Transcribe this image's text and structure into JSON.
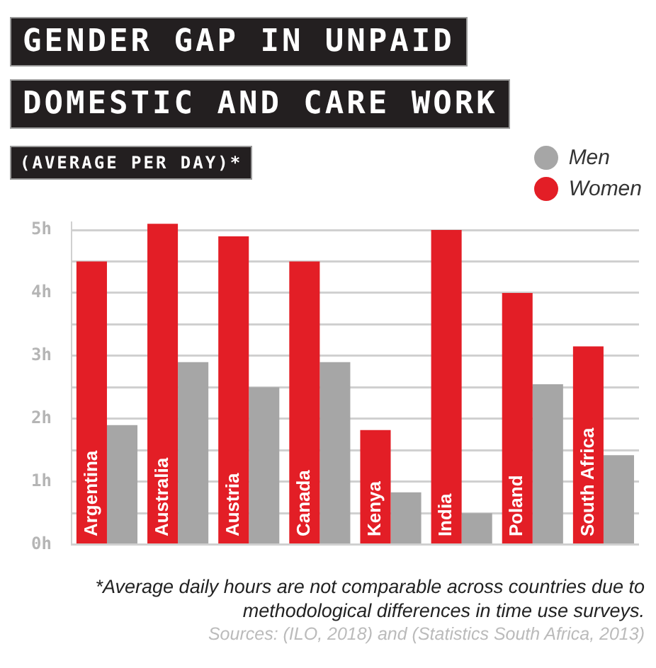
{
  "chart_data": {
    "type": "bar",
    "title": "GENDER GAP IN UNPAID DOMESTIC AND CARE WORK",
    "subtitle": "(AVERAGE PER DAY)*",
    "categories": [
      "Argentina",
      "Australia",
      "Austria",
      "Canada",
      "Kenya",
      "India",
      "Poland",
      "South Africa"
    ],
    "series": [
      {
        "name": "Women",
        "color": "#e31e26",
        "values": [
          4.5,
          5.1,
          4.9,
          4.5,
          1.82,
          5.0,
          4.0,
          3.15
        ]
      },
      {
        "name": "Men",
        "color": "#a6a6a6",
        "values": [
          1.9,
          2.9,
          2.5,
          2.9,
          0.83,
          0.5,
          2.55,
          1.42
        ]
      }
    ],
    "ylim": [
      0,
      5.12
    ],
    "yticks": [
      {
        "value": 0,
        "label": "0h"
      },
      {
        "value": 0.5,
        "label": null
      },
      {
        "value": 1,
        "label": "1h"
      },
      {
        "value": 1.5,
        "label": null
      },
      {
        "value": 2,
        "label": "2h"
      },
      {
        "value": 2.5,
        "label": null
      },
      {
        "value": 3,
        "label": "3h"
      },
      {
        "value": 3.5,
        "label": null
      },
      {
        "value": 4,
        "label": "4h"
      },
      {
        "value": 4.5,
        "label": null
      },
      {
        "value": 5,
        "label": "5h"
      }
    ],
    "grid": "y",
    "legend": "top right",
    "tick_labels": "y",
    "annotations": [
      "*Average daily hours are not comparable across countries due to methodological differences in time use surveys.",
      "Sources: (ILO, 2018) and (Statistics South Africa, 2013)"
    ]
  }
}
